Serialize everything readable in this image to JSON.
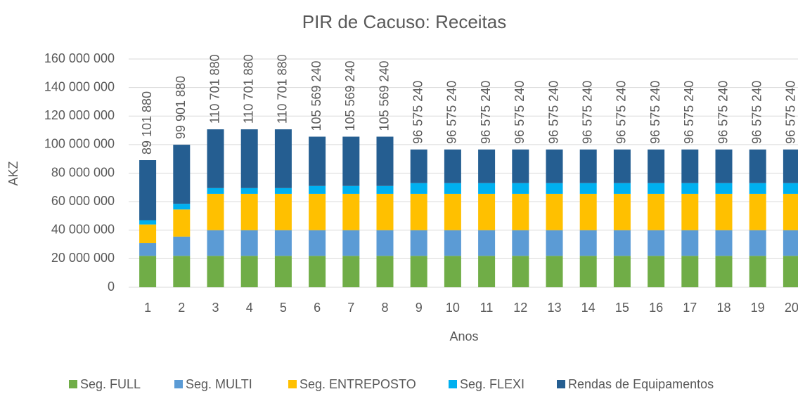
{
  "chart_data": {
    "type": "stacked-bar",
    "title": "PIR de Cacuso: Receitas",
    "x_label": "Anos",
    "y_label": "AKZ",
    "categories": [
      "1",
      "2",
      "3",
      "4",
      "5",
      "6",
      "7",
      "8",
      "9",
      "10",
      "11",
      "12",
      "13",
      "14",
      "15",
      "16",
      "17",
      "18",
      "19",
      "20"
    ],
    "series": [
      {
        "name": "Seg. FULL",
        "color": "#70ad47",
        "values": [
          22000000,
          22000000,
          22000000,
          22000000,
          22000000,
          22000000,
          22000000,
          22000000,
          22000000,
          22000000,
          22000000,
          22000000,
          22000000,
          22000000,
          22000000,
          22000000,
          22000000,
          22000000,
          22000000,
          22000000
        ]
      },
      {
        "name": "Seg. MULTI",
        "color": "#5b9bd5",
        "values": [
          9000000,
          13500000,
          18000000,
          18000000,
          18000000,
          18000000,
          18000000,
          18000000,
          18000000,
          18000000,
          18000000,
          18000000,
          18000000,
          18000000,
          18000000,
          18000000,
          18000000,
          18000000,
          18000000,
          18000000
        ]
      },
      {
        "name": "Seg. ENTREPOSTO",
        "color": "#ffc000",
        "values": [
          13000000,
          19000000,
          25500000,
          25500000,
          25500000,
          25500000,
          25500000,
          25500000,
          25500000,
          25500000,
          25500000,
          25500000,
          25500000,
          25500000,
          25500000,
          25500000,
          25500000,
          25500000,
          25500000,
          25500000
        ]
      },
      {
        "name": "Seg. FLEXI",
        "color": "#00b0f0",
        "values": [
          3000000,
          4000000,
          4000000,
          4000000,
          4000000,
          5500000,
          5500000,
          5500000,
          7500000,
          7500000,
          7500000,
          7500000,
          7500000,
          7500000,
          7500000,
          7500000,
          7500000,
          7500000,
          7500000,
          7500000
        ]
      },
      {
        "name": "Rendas de Equipamentos",
        "color": "#255e91",
        "values": [
          42101880,
          41401880,
          41201880,
          41201880,
          41201880,
          34569240,
          34569240,
          34569240,
          23575240,
          23575240,
          23575240,
          23575240,
          23575240,
          23575240,
          23575240,
          23575240,
          23575240,
          23575240,
          23575240,
          23575240
        ]
      }
    ],
    "total_labels": [
      "89 101 880",
      "99 901 880",
      "110 701 880",
      "110 701 880",
      "110 701 880",
      "105 569 240",
      "105 569 240",
      "105 569 240",
      "96 575 240",
      "96 575 240",
      "96 575 240",
      "96 575 240",
      "96 575 240",
      "96 575 240",
      "96 575 240",
      "96 575 240",
      "96 575 240",
      "96 575 240",
      "96 575 240",
      "96 575 240"
    ],
    "ylim": [
      0,
      160000000
    ],
    "yticks": [
      0,
      {
        "value": 20000000,
        "label": "20 000 000"
      },
      {
        "value": 40000000,
        "label": "40 000 000"
      },
      {
        "value": 60000000,
        "label": "60 000 000"
      },
      {
        "value": 80000000,
        "label": "80 000 000"
      },
      {
        "value": 100000000,
        "label": "100 000 000"
      },
      {
        "value": 120000000,
        "label": "120 000 000"
      },
      {
        "value": 140000000,
        "label": "140 000 000"
      },
      {
        "value": 160000000,
        "label": "160 000 000"
      }
    ],
    "grid": true
  }
}
